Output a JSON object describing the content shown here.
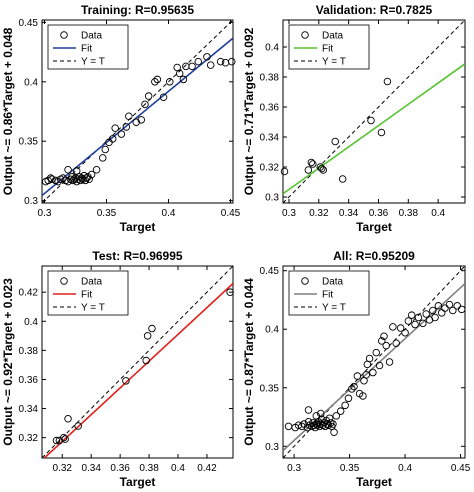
{
  "chart_data": [
    {
      "type": "scatter",
      "title": "Training: R=0.95635",
      "xlabel": "Target",
      "ylabel": "Output ~= 0.86*Target + 0.048",
      "xlim": [
        0.298,
        0.452
      ],
      "ylim": [
        0.298,
        0.452
      ],
      "xticks": [
        0.3,
        0.35,
        0.4,
        0.45
      ],
      "xtick_labels": [
        "0.3",
        "0.35",
        "0.4",
        "0.45"
      ],
      "yticks": [
        0.3,
        0.35,
        0.4,
        0.45
      ],
      "ytick_labels": [
        "0.3",
        "0.35",
        "0.4",
        "0.45"
      ],
      "fit": {
        "slope": 0.86,
        "intercept": 0.048,
        "color": "#1f3f9f"
      },
      "legend": {
        "position": "top-left",
        "entries": [
          "Data",
          "Fit",
          "Y = T"
        ]
      },
      "points": [
        [
          0.301,
          0.316
        ],
        [
          0.303,
          0.317
        ],
        [
          0.305,
          0.319
        ],
        [
          0.306,
          0.318
        ],
        [
          0.309,
          0.317
        ],
        [
          0.311,
          0.316
        ],
        [
          0.313,
          0.318
        ],
        [
          0.315,
          0.319
        ],
        [
          0.317,
          0.317
        ],
        [
          0.319,
          0.316
        ],
        [
          0.321,
          0.318
        ],
        [
          0.322,
          0.32
        ],
        [
          0.323,
          0.317
        ],
        [
          0.324,
          0.318
        ],
        [
          0.325,
          0.319
        ],
        [
          0.326,
          0.316
        ],
        [
          0.327,
          0.318
        ],
        [
          0.328,
          0.32
        ],
        [
          0.329,
          0.317
        ],
        [
          0.33,
          0.319
        ],
        [
          0.331,
          0.318
        ],
        [
          0.332,
          0.321
        ],
        [
          0.333,
          0.317
        ],
        [
          0.334,
          0.319
        ],
        [
          0.335,
          0.32
        ],
        [
          0.336,
          0.318
        ],
        [
          0.319,
          0.326
        ],
        [
          0.326,
          0.325
        ],
        [
          0.338,
          0.322
        ],
        [
          0.342,
          0.326
        ],
        [
          0.347,
          0.336
        ],
        [
          0.349,
          0.343
        ],
        [
          0.352,
          0.349
        ],
        [
          0.355,
          0.352
        ],
        [
          0.357,
          0.361
        ],
        [
          0.362,
          0.356
        ],
        [
          0.366,
          0.362
        ],
        [
          0.368,
          0.371
        ],
        [
          0.374,
          0.366
        ],
        [
          0.378,
          0.368
        ],
        [
          0.381,
          0.381
        ],
        [
          0.384,
          0.388
        ],
        [
          0.389,
          0.4
        ],
        [
          0.391,
          0.402
        ],
        [
          0.396,
          0.387
        ],
        [
          0.401,
          0.4
        ],
        [
          0.407,
          0.412
        ],
        [
          0.409,
          0.407
        ],
        [
          0.412,
          0.402
        ],
        [
          0.414,
          0.413
        ],
        [
          0.419,
          0.413
        ],
        [
          0.424,
          0.417
        ],
        [
          0.431,
          0.421
        ],
        [
          0.434,
          0.414
        ],
        [
          0.442,
          0.417
        ],
        [
          0.446,
          0.416
        ],
        [
          0.451,
          0.417
        ]
      ]
    },
    {
      "type": "scatter",
      "title": "Validation: R=0.7825",
      "xlabel": "Target",
      "ylabel": "Output ~= 0.71*Target + 0.092",
      "xlim": [
        0.296,
        0.418
      ],
      "ylim": [
        0.296,
        0.418
      ],
      "xticks": [
        0.3,
        0.32,
        0.34,
        0.36,
        0.38,
        0.4
      ],
      "xtick_labels": [
        "0.3",
        "0.32",
        "0.34",
        "0.36",
        "0.38",
        "0.4"
      ],
      "yticks": [
        0.3,
        0.32,
        0.34,
        0.36,
        0.38,
        0.4
      ],
      "ytick_labels": [
        "0.3",
        "0.32",
        "0.34",
        "0.36",
        "0.38",
        "0.4"
      ],
      "fit": {
        "slope": 0.71,
        "intercept": 0.092,
        "color": "#55c42f"
      },
      "legend": {
        "position": "top-left",
        "entries": [
          "Data",
          "Fit",
          "Y = T"
        ]
      },
      "points": [
        [
          0.297,
          0.317
        ],
        [
          0.313,
          0.318
        ],
        [
          0.315,
          0.323
        ],
        [
          0.316,
          0.322
        ],
        [
          0.321,
          0.32
        ],
        [
          0.322,
          0.319
        ],
        [
          0.323,
          0.318
        ],
        [
          0.331,
          0.337
        ],
        [
          0.336,
          0.312
        ],
        [
          0.355,
          0.351
        ],
        [
          0.362,
          0.343
        ],
        [
          0.366,
          0.377
        ]
      ]
    },
    {
      "type": "scatter",
      "title": "Test: R=0.96995",
      "xlabel": "Target",
      "ylabel": "Output ~= 0.92*Target + 0.023",
      "xlim": [
        0.306,
        0.438
      ],
      "ylim": [
        0.306,
        0.438
      ],
      "xticks": [
        0.32,
        0.34,
        0.36,
        0.38,
        0.4,
        0.42
      ],
      "xtick_labels": [
        "0.32",
        "0.34",
        "0.36",
        "0.38",
        "0.4",
        "0.42"
      ],
      "yticks": [
        0.32,
        0.34,
        0.36,
        0.38,
        0.4,
        0.42
      ],
      "ytick_labels": [
        "0.32",
        "0.34",
        "0.36",
        "0.38",
        "0.4",
        "0.42"
      ],
      "fit": {
        "slope": 0.92,
        "intercept": 0.023,
        "color": "#e0201b"
      },
      "legend": {
        "position": "top-left",
        "entries": [
          "Data",
          "Fit",
          "Y = T"
        ]
      },
      "points": [
        [
          0.316,
          0.318
        ],
        [
          0.318,
          0.318
        ],
        [
          0.321,
          0.32
        ],
        [
          0.322,
          0.319
        ],
        [
          0.324,
          0.333
        ],
        [
          0.331,
          0.328
        ],
        [
          0.364,
          0.359
        ],
        [
          0.378,
          0.373
        ],
        [
          0.379,
          0.39
        ],
        [
          0.382,
          0.395
        ],
        [
          0.436,
          0.42
        ]
      ]
    },
    {
      "type": "scatter",
      "title": "All: R=0.95209",
      "xlabel": "Target",
      "ylabel": "Output ~= 0.87*Target + 0.044",
      "xlim": [
        0.29,
        0.454
      ],
      "ylim": [
        0.29,
        0.454
      ],
      "xticks": [
        0.3,
        0.35,
        0.4,
        0.45
      ],
      "xtick_labels": [
        "0.3",
        "0.35",
        "0.4",
        "0.45"
      ],
      "yticks": [
        0.3,
        0.35,
        0.4,
        0.45
      ],
      "ytick_labels": [
        "0.3",
        "0.35",
        "0.4",
        "0.45"
      ],
      "fit": {
        "slope": 0.87,
        "intercept": 0.044,
        "color": "#808080"
      },
      "legend": {
        "position": "top-left",
        "entries": [
          "Data",
          "Fit",
          "Y = T"
        ]
      },
      "points": [
        [
          0.295,
          0.317
        ],
        [
          0.301,
          0.316
        ],
        [
          0.304,
          0.318
        ],
        [
          0.307,
          0.317
        ],
        [
          0.309,
          0.319
        ],
        [
          0.312,
          0.316
        ],
        [
          0.313,
          0.321
        ],
        [
          0.314,
          0.318
        ],
        [
          0.316,
          0.317
        ],
        [
          0.317,
          0.32
        ],
        [
          0.318,
          0.318
        ],
        [
          0.319,
          0.316
        ],
        [
          0.32,
          0.319
        ],
        [
          0.321,
          0.318
        ],
        [
          0.322,
          0.321
        ],
        [
          0.323,
          0.317
        ],
        [
          0.324,
          0.319
        ],
        [
          0.325,
          0.323
        ],
        [
          0.326,
          0.318
        ],
        [
          0.327,
          0.32
        ],
        [
          0.328,
          0.317
        ],
        [
          0.329,
          0.322
        ],
        [
          0.33,
          0.319
        ],
        [
          0.331,
          0.318
        ],
        [
          0.332,
          0.324
        ],
        [
          0.333,
          0.32
        ],
        [
          0.334,
          0.317
        ],
        [
          0.335,
          0.319
        ],
        [
          0.336,
          0.312
        ],
        [
          0.338,
          0.326
        ],
        [
          0.313,
          0.331
        ],
        [
          0.324,
          0.328
        ],
        [
          0.32,
          0.326
        ],
        [
          0.342,
          0.33
        ],
        [
          0.346,
          0.335
        ],
        [
          0.349,
          0.341
        ],
        [
          0.352,
          0.349
        ],
        [
          0.354,
          0.351
        ],
        [
          0.357,
          0.36
        ],
        [
          0.359,
          0.345
        ],
        [
          0.362,
          0.343
        ],
        [
          0.363,
          0.356
        ],
        [
          0.365,
          0.361
        ],
        [
          0.366,
          0.37
        ],
        [
          0.368,
          0.375
        ],
        [
          0.371,
          0.363
        ],
        [
          0.374,
          0.38
        ],
        [
          0.377,
          0.369
        ],
        [
          0.379,
          0.39
        ],
        [
          0.381,
          0.394
        ],
        [
          0.383,
          0.386
        ],
        [
          0.386,
          0.372
        ],
        [
          0.389,
          0.402
        ],
        [
          0.392,
          0.388
        ],
        [
          0.396,
          0.401
        ],
        [
          0.4,
          0.397
        ],
        [
          0.403,
          0.407
        ],
        [
          0.406,
          0.412
        ],
        [
          0.409,
          0.404
        ],
        [
          0.412,
          0.41
        ],
        [
          0.416,
          0.405
        ],
        [
          0.419,
          0.413
        ],
        [
          0.422,
          0.408
        ],
        [
          0.425,
          0.416
        ],
        [
          0.427,
          0.41
        ],
        [
          0.43,
          0.42
        ],
        [
          0.433,
          0.414
        ],
        [
          0.436,
          0.418
        ],
        [
          0.44,
          0.421
        ],
        [
          0.443,
          0.416
        ],
        [
          0.447,
          0.42
        ],
        [
          0.451,
          0.417
        ]
      ]
    }
  ]
}
